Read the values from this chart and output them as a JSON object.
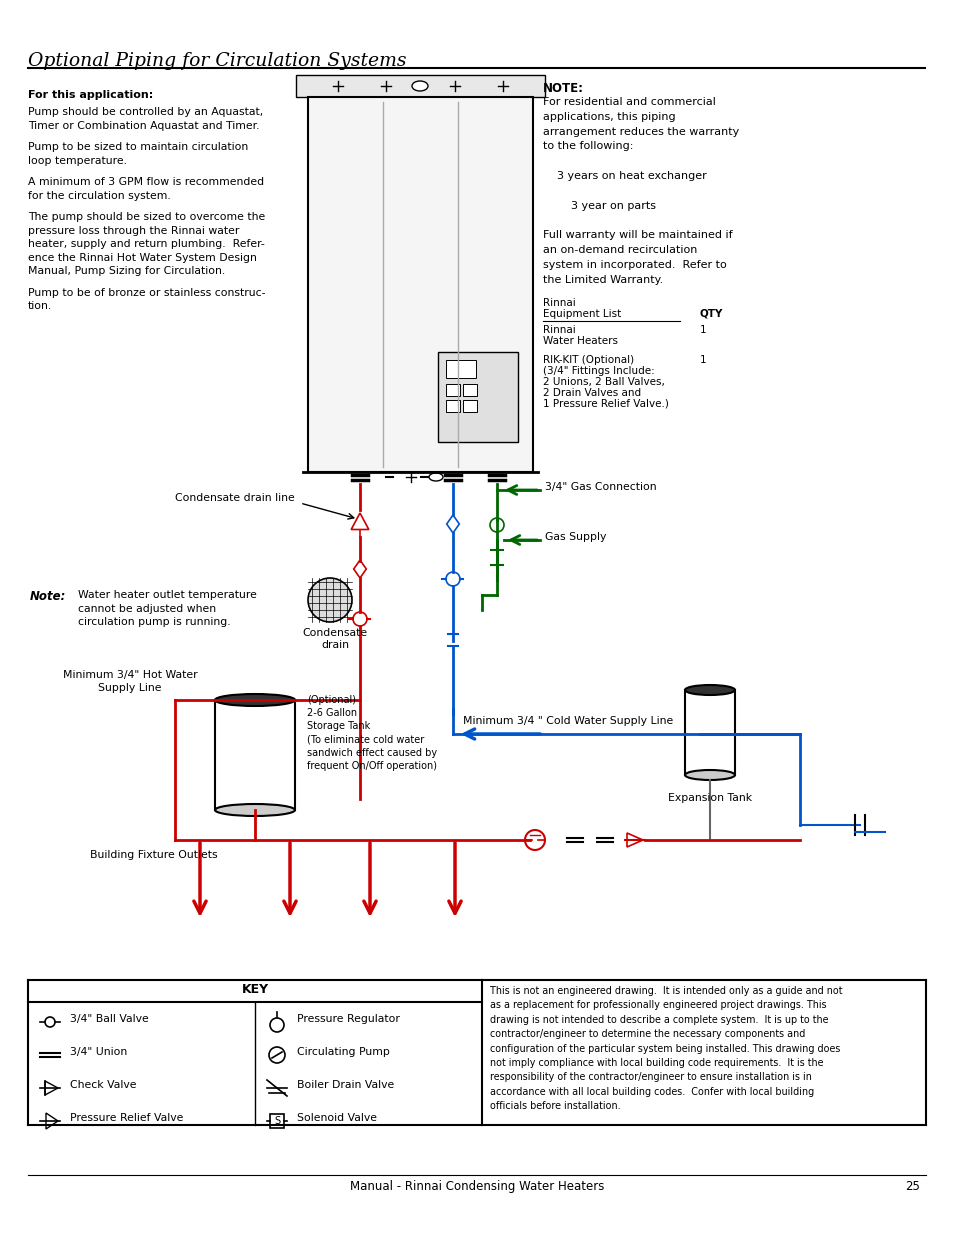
{
  "title": "Optional Piping for Circulation Systems",
  "footer": "Manual - Rinnai Condensing Water Heaters",
  "page_num": "25",
  "bg_color": "#ffffff",
  "note_title": "NOTE:",
  "note_text": "For residential and commercial\napplications, this piping\narrangement reduces the warranty\nto the following:\n\n    3 years on heat exchanger\n\n        3 year on parts\n\nFull warranty will be maintained if\nan on-demand recirculation\nsystem in incorporated.  Refer to\nthe Limited Warranty.",
  "equip_header1": "Rinnai",
  "equip_header2": "Equipment List",
  "equip_qty_label": "QTY",
  "equip_item1a": "Rinnai",
  "equip_item1b": "Water Heaters",
  "equip_qty1": "1",
  "equip_item2a": "RIK-KIT (Optional)",
  "equip_item2b": "(3/4\" Fittings Include:",
  "equip_item2c": "2 Unions, 2 Ball Valves,",
  "equip_item2d": "2 Drain Valves and",
  "equip_item2e": "1 Pressure Relief Valve.)",
  "equip_qty2": "1",
  "left_title": "For this application:",
  "left_p1": "Pump should be controlled by an Aquastat,\nTimer or Combination Aquastat and Timer.",
  "left_p2": "Pump to be sized to maintain circulation\nloop temperature.",
  "left_p3": "A minimum of 3 GPM flow is recommended\nfor the circulation system.",
  "left_p4": "The pump should be sized to overcome the\npressure loss through the Rinnai water\nheater, supply and return plumbing.  Refer-\nence the Rinnai Hot Water System Design\nManual, Pump Sizing for Circulation.",
  "left_p5": "Pump to be of bronze or stainless construc-\ntion.",
  "note_label": "Note:",
  "note_label_text": "Water heater outlet temperature\ncannot be adjusted when\ncirculation pump is running.",
  "condensate_drain_line": "Condensate drain line",
  "condensate_drain": "Condensate\ndrain",
  "gas_connection": "3/4\" Gas Connection",
  "gas_supply": "Gas Supply",
  "min_hot": "Minimum 3/4\" Hot Water\nSupply Line",
  "min_cold": "Minimum 3/4 \" Cold Water Supply Line",
  "storage_tank_label": "(Optional)\n2-6 Gallon\nStorage Tank\n(To eliminate cold water\nsandwich effect caused by\nfrequent On/Off operation)",
  "expansion_tank": "Expansion Tank",
  "building_fixture": "Building Fixture Outlets",
  "key_title": "KEY",
  "key_left": [
    "3/4\" Ball Valve",
    "3/4\" Union",
    "Check Valve",
    "Pressure Relief Valve"
  ],
  "key_right": [
    "Pressure Regulator",
    "Circulating Pump",
    "Boiler Drain Valve",
    "Solenoid Valve"
  ],
  "disclaimer": "This is not an engineered drawing.  It is intended only as a guide and not\nas a replacement for professionally engineered project drawings. This\ndrawing is not intended to describe a complete system.  It is up to the\ncontractor/engineer to determine the necessary components and\nconfiguration of the particular system being installed. This drawing does\nnot imply compliance with local building code requirements.  It is the\nresponsibility of the contractor/engineer to ensure installation is in\naccordance with all local building codes.  Confer with local building\nofficials before installation.",
  "red": "#cc0000",
  "blue": "#0055cc",
  "green": "#006600",
  "black": "#000000"
}
